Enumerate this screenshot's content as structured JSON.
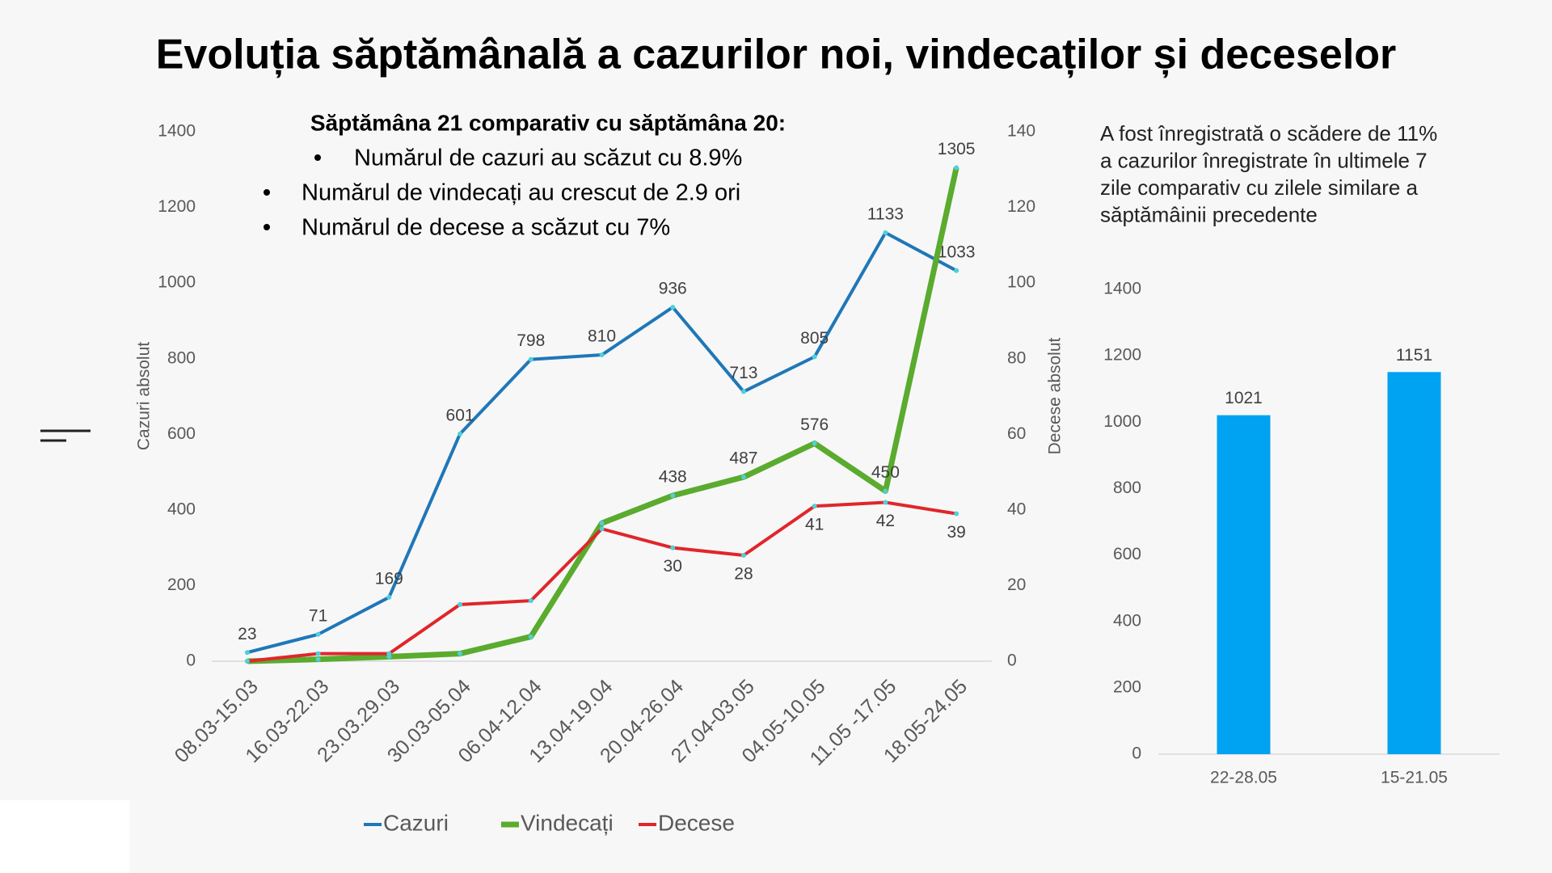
{
  "chart_data": [
    {
      "type": "line",
      "title": "Evoluția săptămânală a cazurilor noi, vindecaților și deceselor",
      "annotation": {
        "heading": "Săptămâna 21 comparativ cu săptămâna 20:",
        "bullets": [
          "Numărul de cazuri au scăzut cu 8.9%",
          "Numărul de vindecați au crescut de 2.9 ori",
          "Numărul de decese a scăzut cu 7%"
        ]
      },
      "categories": [
        "08.03-15.03",
        "16.03-22.03",
        "23.03.29.03",
        "30.03-05.04",
        "06.04-12.04",
        "13.04-19.04",
        "20.04-26.04",
        "27.04-03.05",
        "04.05-10.05",
        "11.05 -17.05",
        "18.05-24.05"
      ],
      "series": [
        {
          "name": "Cazuri",
          "color": "#1f77b8",
          "values": [
            23,
            71,
            169,
            601,
            798,
            810,
            936,
            713,
            805,
            1133,
            1033
          ]
        },
        {
          "name": "Vindecați",
          "color": "#5aab2e",
          "values": [
            0,
            5,
            12,
            20,
            65,
            365,
            438,
            487,
            576,
            450,
            1305
          ],
          "value_labels": [
            null,
            null,
            null,
            null,
            null,
            null,
            "438",
            "487",
            "576",
            "450",
            "1305"
          ]
        },
        {
          "name": "Decese",
          "color": "#e0262b",
          "axis": "y2",
          "values": [
            0,
            2,
            2,
            15,
            16,
            35,
            30,
            28,
            41,
            42,
            39
          ],
          "value_labels": [
            null,
            null,
            null,
            null,
            null,
            null,
            "30",
            "28",
            "41",
            "42",
            "39"
          ]
        }
      ],
      "ylabel": "Cazuri absolut",
      "y2label": "Decese absolut",
      "ylim": [
        0,
        1400
      ],
      "yticks": [
        0,
        200,
        400,
        600,
        800,
        1000,
        1200,
        1400
      ],
      "y2lim": [
        0,
        140
      ],
      "y2ticks": [
        0,
        20,
        40,
        60,
        80,
        100,
        120,
        140
      ],
      "legend": "bottom"
    },
    {
      "type": "bar",
      "annotation": [
        "A fost înregistrată o scădere de 11%",
        "a cazurilor înregistrate în ultimele 7",
        "zile comparativ cu zilele similare a",
        "săptămâinii precedente"
      ],
      "categories": [
        "22-28.05",
        "15-21.05"
      ],
      "values": [
        1021,
        1151
      ],
      "color": "#00a2f2",
      "ylim": [
        0,
        1400
      ],
      "yticks": [
        0,
        200,
        400,
        600,
        800,
        1000,
        1200,
        1400
      ]
    }
  ]
}
